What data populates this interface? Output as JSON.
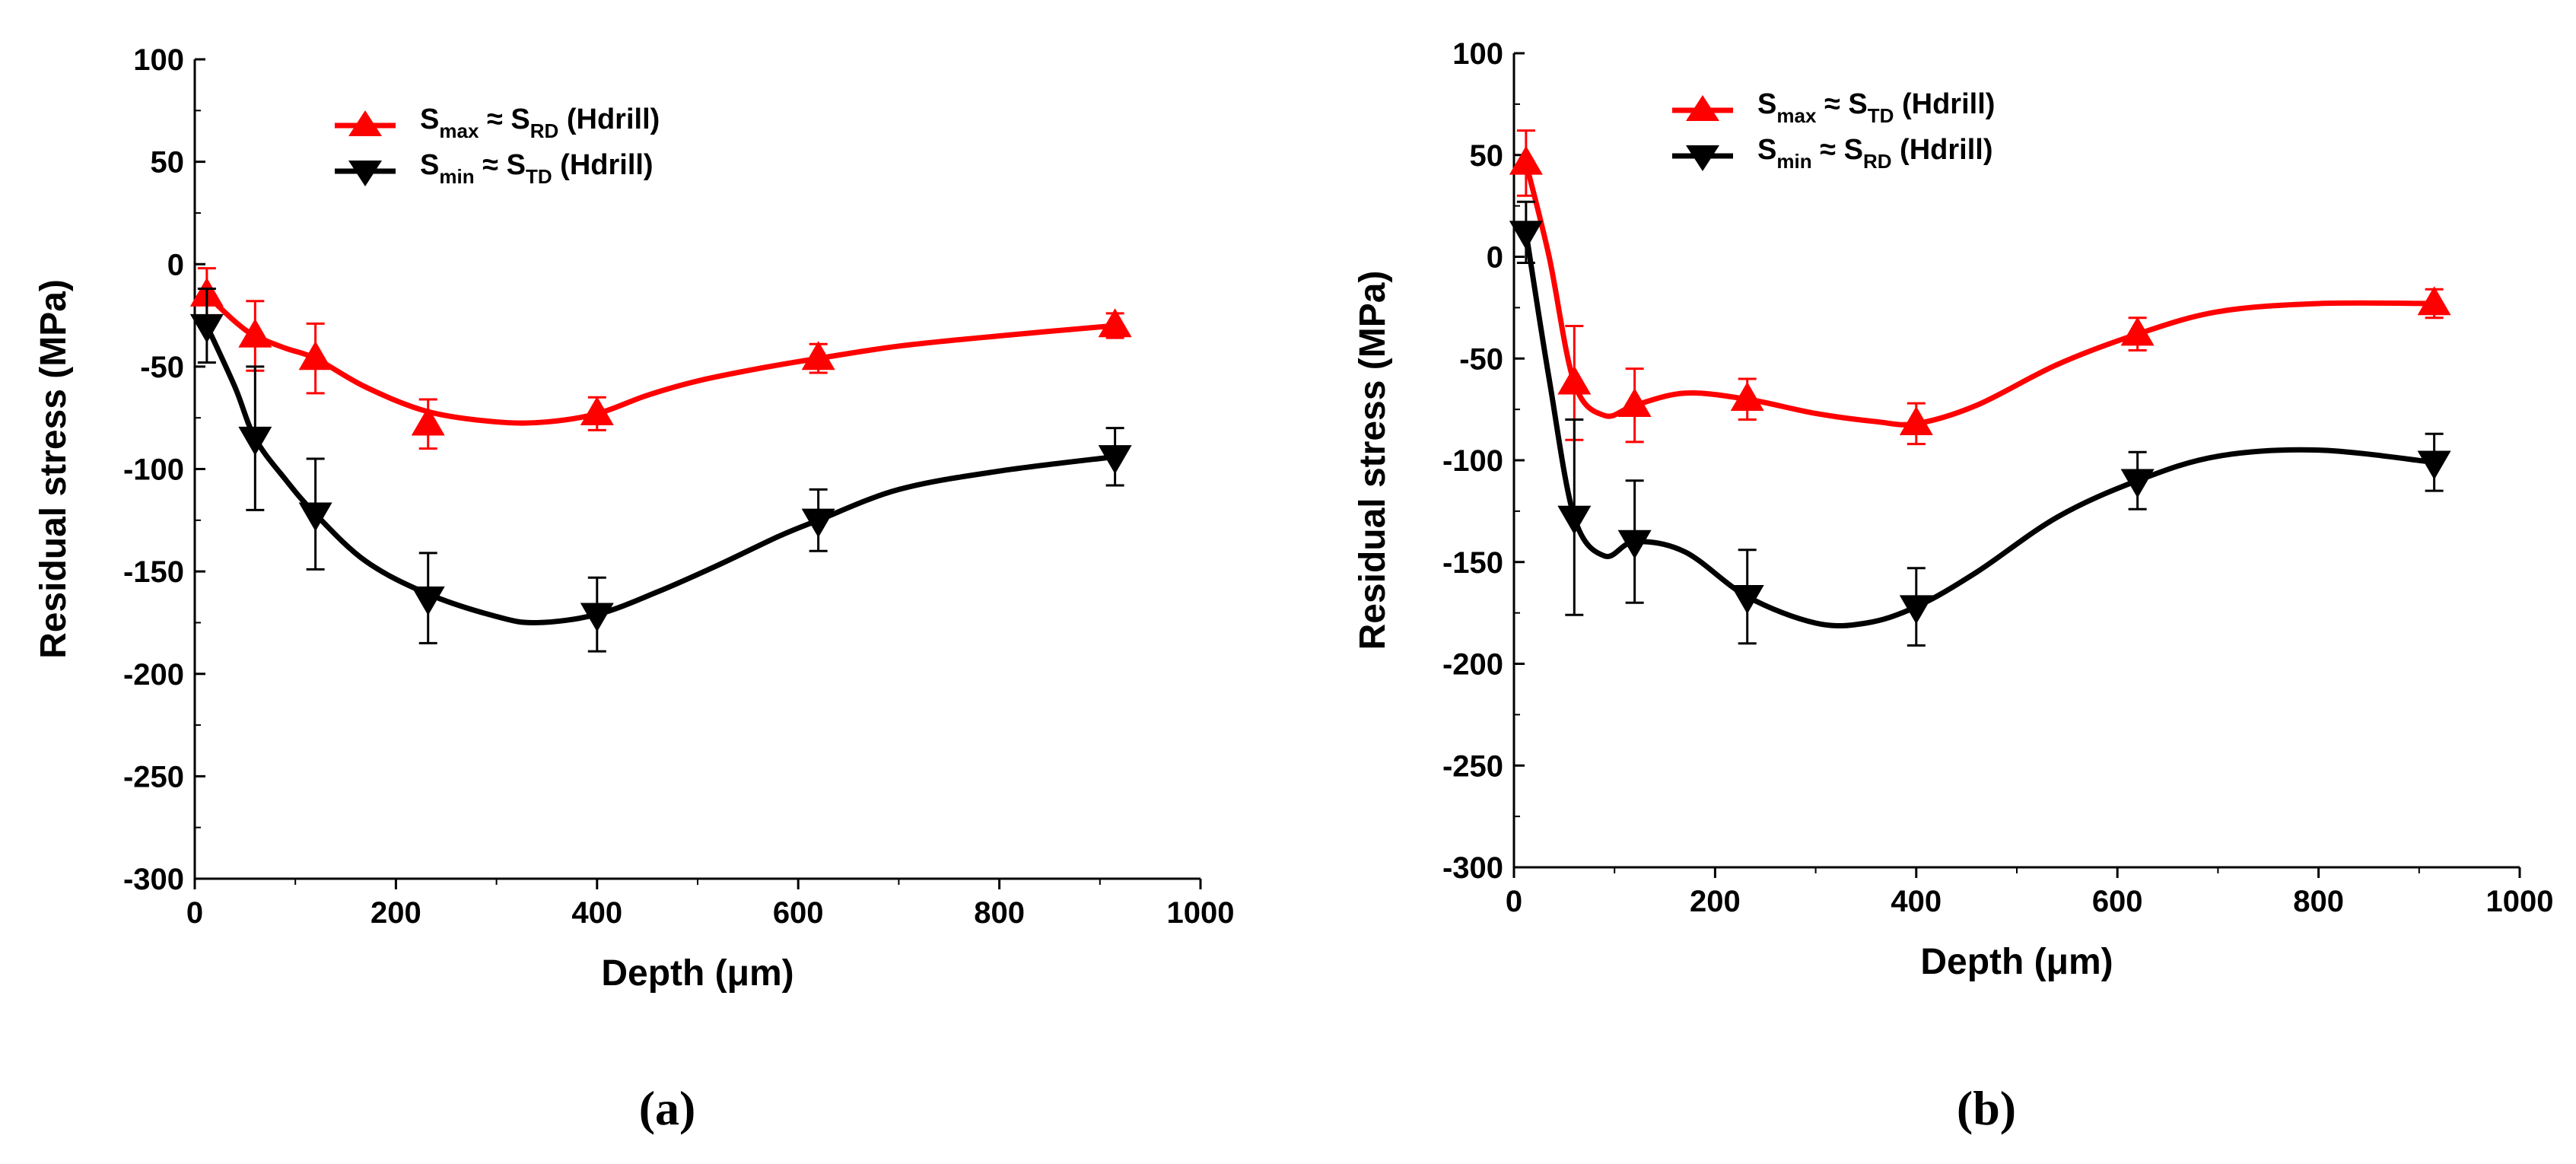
{
  "chart_data": [
    {
      "type": "line",
      "panel_label": "(a)",
      "xlabel": "Depth (μm)",
      "ylabel": "Residual stress (MPa)",
      "xlim": [
        0,
        1000
      ],
      "ylim": [
        -300,
        100
      ],
      "xticks": [
        0,
        200,
        400,
        600,
        800,
        1000
      ],
      "yticks": [
        -300,
        -250,
        -200,
        -150,
        -100,
        -50,
        0,
        50,
        100
      ],
      "legend_position": "top-center",
      "series": [
        {
          "name": "S_max ≈ S_RD (Hdrill)",
          "legend": {
            "main": "S",
            "sub": "max",
            "approx": "≈",
            "main2": "S",
            "sub2": "RD",
            "suffix": "(Hdrill)"
          },
          "color": "#ff0000",
          "marker": "triangle-up",
          "x": [
            12,
            60,
            120,
            232,
            400,
            620,
            915
          ],
          "y": [
            -15,
            -35,
            -46,
            -78,
            -73,
            -46,
            -30
          ],
          "err": [
            13,
            17,
            17,
            12,
            8,
            7,
            6
          ],
          "curve": [
            [
              12,
              -15
            ],
            [
              40,
              -28
            ],
            [
              60,
              -35
            ],
            [
              90,
              -41
            ],
            [
              120,
              -46
            ],
            [
              170,
              -60
            ],
            [
              232,
              -72
            ],
            [
              300,
              -77
            ],
            [
              350,
              -77
            ],
            [
              400,
              -73
            ],
            [
              450,
              -64
            ],
            [
              500,
              -57
            ],
            [
              560,
              -51
            ],
            [
              620,
              -46
            ],
            [
              700,
              -40
            ],
            [
              800,
              -35
            ],
            [
              915,
              -30
            ]
          ]
        },
        {
          "name": "S_min ≈ S_TD (Hdrill)",
          "legend": {
            "main": "S",
            "sub": "min",
            "approx": "≈",
            "main2": "S",
            "sub2": "TD",
            "suffix": "(Hdrill)"
          },
          "color": "#000000",
          "marker": "triangle-down",
          "x": [
            12,
            60,
            120,
            232,
            400,
            620,
            915
          ],
          "y": [
            -30,
            -85,
            -122,
            -163,
            -171,
            -125,
            -94
          ],
          "err": [
            18,
            35,
            27,
            22,
            18,
            15,
            14
          ],
          "curve": [
            [
              12,
              -30
            ],
            [
              40,
              -60
            ],
            [
              60,
              -85
            ],
            [
              90,
              -105
            ],
            [
              120,
              -122
            ],
            [
              170,
              -145
            ],
            [
              232,
              -161
            ],
            [
              300,
              -172
            ],
            [
              340,
              -175
            ],
            [
              400,
              -171
            ],
            [
              460,
              -160
            ],
            [
              520,
              -147
            ],
            [
              580,
              -133
            ],
            [
              620,
              -125
            ],
            [
              700,
              -110
            ],
            [
              800,
              -101
            ],
            [
              915,
              -94
            ]
          ]
        }
      ]
    },
    {
      "type": "line",
      "panel_label": "(b)",
      "xlabel": "Depth (μm)",
      "ylabel": "Residual stress (MPa)",
      "xlim": [
        0,
        1000
      ],
      "ylim": [
        -300,
        100
      ],
      "xticks": [
        0,
        200,
        400,
        600,
        800,
        1000
      ],
      "yticks": [
        -300,
        -250,
        -200,
        -150,
        -100,
        -50,
        0,
        50,
        100
      ],
      "legend_position": "top-center",
      "series": [
        {
          "name": "S_max ≈ S_TD (Hdrill)",
          "legend": {
            "main": "S",
            "sub": "max",
            "approx": "≈",
            "main2": "S",
            "sub2": "TD",
            "suffix": "(Hdrill)"
          },
          "color": "#ff0000",
          "marker": "triangle-up",
          "x": [
            12,
            60,
            120,
            232,
            400,
            620,
            915
          ],
          "y": [
            46,
            -62,
            -73,
            -70,
            -82,
            -38,
            -23
          ],
          "err": [
            16,
            28,
            18,
            10,
            10,
            8,
            7
          ],
          "curve": [
            [
              12,
              46
            ],
            [
              35,
              0
            ],
            [
              60,
              -62
            ],
            [
              90,
              -78
            ],
            [
              120,
              -73
            ],
            [
              170,
              -67
            ],
            [
              232,
              -70
            ],
            [
              300,
              -77
            ],
            [
              360,
              -81
            ],
            [
              400,
              -82
            ],
            [
              460,
              -73
            ],
            [
              540,
              -53
            ],
            [
              620,
              -38
            ],
            [
              700,
              -27
            ],
            [
              800,
              -23
            ],
            [
              915,
              -23
            ]
          ]
        },
        {
          "name": "S_min ≈ S_RD (Hdrill)",
          "legend": {
            "main": "S",
            "sub": "min",
            "approx": "≈",
            "main2": "S",
            "sub2": "RD",
            "suffix": "(Hdrill)"
          },
          "color": "#000000",
          "marker": "triangle-down",
          "x": [
            12,
            60,
            120,
            232,
            400,
            620,
            915
          ],
          "y": [
            12,
            -128,
            -140,
            -167,
            -172,
            -110,
            -101
          ],
          "err": [
            15,
            48,
            30,
            23,
            19,
            14,
            14
          ],
          "curve": [
            [
              12,
              12
            ],
            [
              35,
              -60
            ],
            [
              60,
              -128
            ],
            [
              90,
              -147
            ],
            [
              120,
              -140
            ],
            [
              170,
              -145
            ],
            [
              232,
              -167
            ],
            [
              300,
              -180
            ],
            [
              350,
              -180
            ],
            [
              400,
              -172
            ],
            [
              460,
              -155
            ],
            [
              540,
              -128
            ],
            [
              620,
              -110
            ],
            [
              700,
              -98
            ],
            [
              800,
              -95
            ],
            [
              915,
              -101
            ]
          ]
        }
      ]
    }
  ]
}
